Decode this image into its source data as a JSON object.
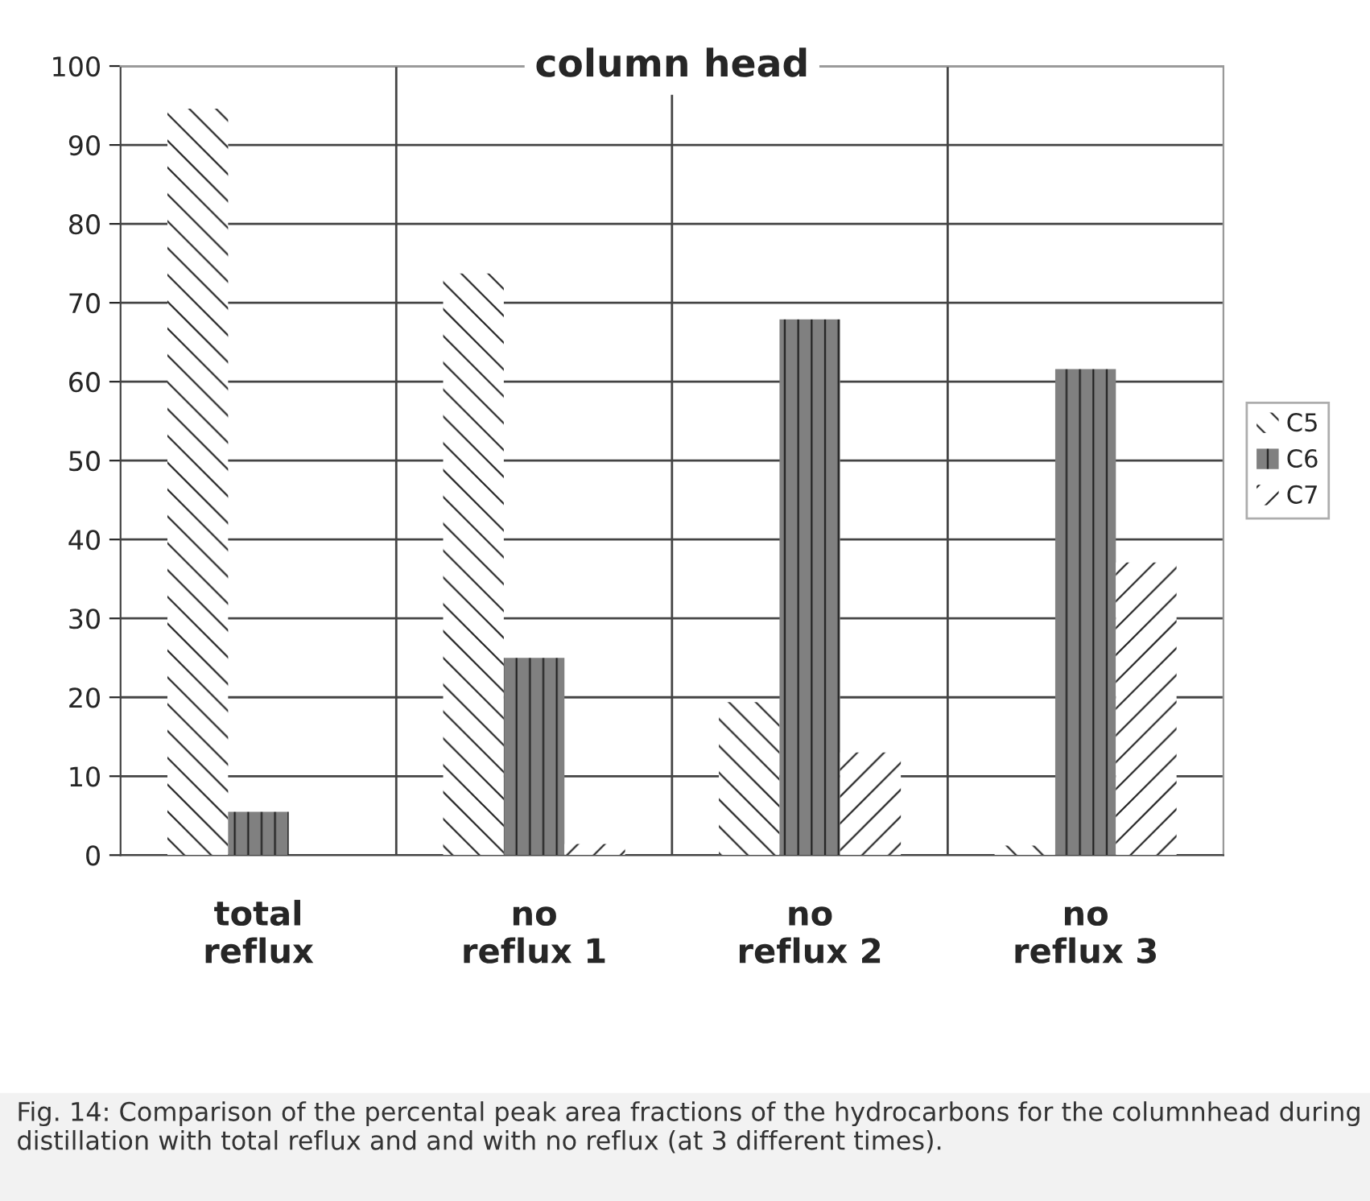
{
  "chart_data": {
    "type": "bar",
    "title": "column head",
    "categories": [
      "total\nreflux",
      "no\nreflux 1",
      "no\nreflux 2",
      "no\nreflux 3"
    ],
    "series": [
      {
        "name": "C5",
        "color": "#ffffff",
        "values": [
          94.6,
          73.7,
          19.4,
          1.2
        ]
      },
      {
        "name": "C6",
        "color": "#808080",
        "values": [
          5.5,
          25.0,
          67.9,
          61.6
        ]
      },
      {
        "name": "C7",
        "color": "#ffffff",
        "values": [
          null,
          1.4,
          13.0,
          37.1
        ]
      }
    ],
    "ylim": [
      0,
      100
    ],
    "yticks": [
      0,
      10,
      20,
      30,
      40,
      50,
      60,
      70,
      80,
      90,
      100
    ],
    "grid": true,
    "legend": "right",
    "annotations": [
      "Fig. 14: Comparison of the percental peak area fractions of the hydrocarbons for the columnhead during distillation with total reflux and and with no reflux (at 3 different times)."
    ]
  }
}
